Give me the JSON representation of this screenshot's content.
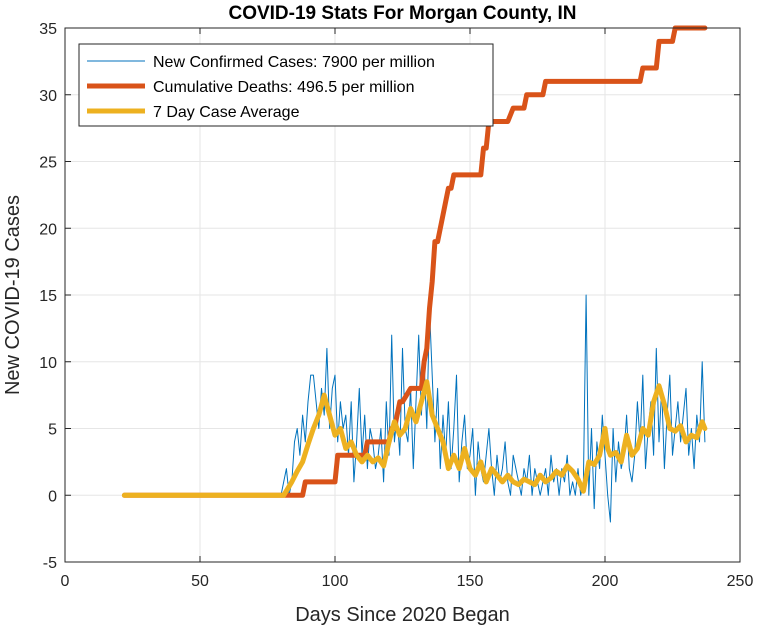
{
  "chart_data": {
    "type": "line",
    "title": "COVID-19 Stats For Morgan County, IN",
    "xlabel": "Days Since 2020 Began",
    "ylabel": "New COVID-19 Cases",
    "xlim": [
      0,
      250
    ],
    "ylim": [
      -5,
      35
    ],
    "xticks": [
      0,
      50,
      100,
      150,
      200,
      250
    ],
    "yticks": [
      -5,
      0,
      5,
      10,
      15,
      20,
      25,
      30,
      35
    ],
    "grid": true,
    "legend_position": "top-left",
    "colors": {
      "new_cases": "#0072BD",
      "deaths": "#D95319",
      "avg": "#EDB120",
      "grid": "#e6e6e6",
      "axis": "#262626"
    },
    "series": [
      {
        "name": "New Confirmed Cases: 7900 per million",
        "key": "new_cases",
        "width": 1,
        "x": [
          22,
          80,
          81,
          82,
          83,
          84,
          85,
          86,
          87,
          88,
          89,
          90,
          91,
          92,
          93,
          94,
          95,
          96,
          97,
          98,
          99,
          100,
          101,
          102,
          103,
          104,
          105,
          106,
          107,
          108,
          109,
          110,
          111,
          112,
          113,
          114,
          115,
          116,
          117,
          118,
          119,
          120,
          121,
          122,
          123,
          124,
          125,
          126,
          127,
          128,
          129,
          130,
          131,
          132,
          133,
          134,
          135,
          136,
          137,
          138,
          139,
          140,
          141,
          142,
          143,
          144,
          145,
          146,
          147,
          148,
          149,
          150,
          151,
          152,
          153,
          154,
          155,
          156,
          157,
          158,
          159,
          160,
          161,
          162,
          163,
          164,
          165,
          166,
          167,
          168,
          169,
          170,
          171,
          172,
          173,
          174,
          175,
          176,
          177,
          178,
          179,
          180,
          181,
          182,
          183,
          184,
          185,
          186,
          187,
          188,
          189,
          190,
          191,
          192,
          193,
          194,
          195,
          196,
          197,
          198,
          199,
          200,
          201,
          202,
          203,
          204,
          205,
          206,
          207,
          208,
          209,
          210,
          211,
          212,
          213,
          214,
          215,
          216,
          217,
          218,
          219,
          220,
          221,
          222,
          223,
          224,
          225,
          226,
          227,
          228,
          229,
          230,
          231,
          232,
          233,
          234,
          235,
          236,
          237
        ],
        "y": [
          0,
          0,
          1,
          2,
          0,
          1,
          4,
          5,
          3,
          6,
          4,
          7,
          9,
          9,
          7,
          5,
          8,
          6,
          11,
          5,
          8,
          9,
          4,
          7,
          5,
          6,
          3,
          7,
          1,
          4,
          8,
          3,
          6,
          2,
          5,
          4,
          2,
          3,
          5,
          1,
          7,
          3,
          12,
          4,
          6,
          3,
          11,
          5,
          4,
          8,
          2,
          7,
          12,
          6,
          10,
          5,
          14,
          9,
          4,
          8,
          2,
          6,
          3,
          7,
          2,
          5,
          9,
          1,
          4,
          6,
          2,
          3,
          5,
          0,
          4,
          2,
          1,
          3,
          5,
          2,
          0,
          3,
          1,
          2,
          4,
          1,
          0,
          3,
          2,
          1,
          0,
          2,
          1,
          3,
          0,
          2,
          1,
          0,
          1,
          2,
          0,
          3,
          1,
          2,
          0,
          2,
          1,
          3,
          0,
          1,
          0,
          2,
          0,
          1,
          15,
          0,
          5,
          -1,
          4,
          2,
          6,
          3,
          0,
          -2,
          5,
          1,
          4,
          2,
          3,
          6,
          2,
          1,
          3,
          7,
          4,
          9,
          2,
          5,
          7,
          3,
          11,
          4,
          8,
          2,
          6,
          9,
          3,
          5,
          7,
          4,
          6,
          8,
          3,
          5,
          2,
          6,
          4,
          10,
          4
        ]
      },
      {
        "name": "Cumulative Deaths: 496.5 per million",
        "key": "deaths",
        "width": 5,
        "x": [
          22,
          82,
          83,
          88,
          89,
          94,
          95,
          100,
          101,
          106,
          107,
          111,
          112,
          118,
          119,
          120,
          121,
          122,
          124,
          125,
          128,
          129,
          132,
          133,
          134,
          135,
          136,
          137,
          138,
          139,
          140,
          141,
          142,
          143,
          144,
          145,
          146,
          152,
          153,
          154,
          155,
          156,
          157,
          162,
          163,
          164,
          166,
          167,
          168,
          170,
          171,
          172,
          177,
          178,
          192,
          193,
          200,
          201,
          207,
          208,
          213,
          214,
          219,
          220,
          225,
          226,
          237
        ],
        "y": [
          0,
          0,
          0,
          0,
          1,
          1,
          1,
          1,
          3,
          3,
          3,
          3,
          4,
          4,
          4,
          4,
          5,
          5,
          7,
          7,
          8,
          8,
          8,
          10,
          11,
          14,
          16,
          19,
          19,
          20,
          21,
          22,
          23,
          23,
          24,
          24,
          24,
          24,
          24,
          24,
          26,
          26,
          28,
          28,
          28,
          28,
          29,
          29,
          29,
          29,
          30,
          30,
          30,
          31,
          31,
          31,
          31,
          31,
          31,
          31,
          31,
          32,
          32,
          34,
          34,
          35,
          35
        ]
      },
      {
        "name": "7 Day Case Average",
        "key": "avg",
        "width": 5,
        "x": [
          22,
          81,
          84,
          86,
          88,
          90,
          92,
          94,
          96,
          98,
          100,
          102,
          104,
          106,
          108,
          110,
          112,
          114,
          116,
          118,
          120,
          122,
          124,
          126,
          128,
          130,
          132,
          134,
          136,
          138,
          140,
          142,
          144,
          146,
          148,
          150,
          152,
          154,
          156,
          158,
          160,
          162,
          164,
          166,
          168,
          170,
          172,
          174,
          176,
          178,
          180,
          182,
          184,
          186,
          188,
          190,
          192,
          194,
          196,
          198,
          200,
          201,
          202,
          204,
          206,
          208,
          210,
          212,
          214,
          216,
          218,
          220,
          222,
          224,
          226,
          228,
          230,
          232,
          234,
          236,
          237
        ],
        "y": [
          0,
          0,
          1,
          1.8,
          2.5,
          3.8,
          5,
          6,
          7.5,
          6,
          4.5,
          5,
          3.5,
          4,
          3,
          2.5,
          3,
          2.5,
          2.8,
          2.2,
          4,
          5.5,
          4.5,
          5,
          6.5,
          5.5,
          7,
          8.5,
          6,
          5,
          4,
          2,
          3,
          2,
          3.5,
          2,
          1.5,
          2.5,
          1,
          2,
          1.5,
          1,
          1.5,
          1,
          0.8,
          1.2,
          1,
          0.8,
          1.5,
          1,
          1.3,
          1.8,
          1.5,
          2.2,
          1.8,
          1.2,
          0.3,
          2.5,
          2.3,
          3,
          5,
          3.5,
          3,
          3.2,
          2.5,
          4.5,
          3,
          3.5,
          5,
          4.5,
          7,
          8.2,
          6.8,
          5,
          4.8,
          5.2,
          4,
          4.5,
          4.3,
          5.5,
          5
        ]
      }
    ]
  }
}
